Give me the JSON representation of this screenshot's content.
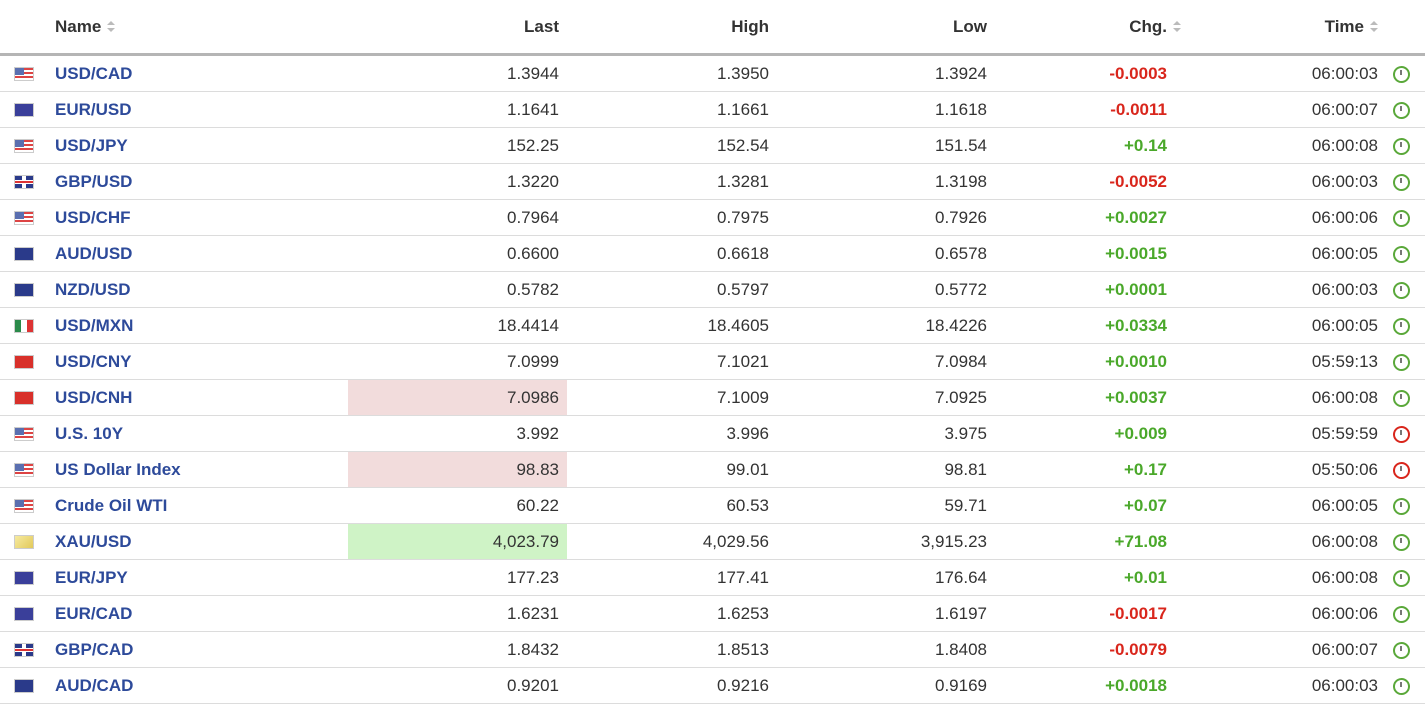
{
  "headers": {
    "name": "Name",
    "last": "Last",
    "high": "High",
    "low": "Low",
    "chg": "Chg.",
    "time": "Time"
  },
  "colors": {
    "positive": "#4aa82a",
    "negative": "#d9261c",
    "name_link": "#2d4a9a",
    "highlight_down": "#f2dcdc",
    "highlight_up": "#cff3c6"
  },
  "rows": [
    {
      "flag": "us",
      "name": "USD/CAD",
      "last": "1.3944",
      "high": "1.3950",
      "low": "1.3924",
      "chg": "-0.0003",
      "time": "06:00:03",
      "clock": "green",
      "hl": ""
    },
    {
      "flag": "eu",
      "name": "EUR/USD",
      "last": "1.1641",
      "high": "1.1661",
      "low": "1.1618",
      "chg": "-0.0011",
      "time": "06:00:07",
      "clock": "green",
      "hl": ""
    },
    {
      "flag": "us",
      "name": "USD/JPY",
      "last": "152.25",
      "high": "152.54",
      "low": "151.54",
      "chg": "+0.14",
      "time": "06:00:08",
      "clock": "green",
      "hl": ""
    },
    {
      "flag": "gb",
      "name": "GBP/USD",
      "last": "1.3220",
      "high": "1.3281",
      "low": "1.3198",
      "chg": "-0.0052",
      "time": "06:00:03",
      "clock": "green",
      "hl": ""
    },
    {
      "flag": "us",
      "name": "USD/CHF",
      "last": "0.7964",
      "high": "0.7975",
      "low": "0.7926",
      "chg": "+0.0027",
      "time": "06:00:06",
      "clock": "green",
      "hl": ""
    },
    {
      "flag": "au",
      "name": "AUD/USD",
      "last": "0.6600",
      "high": "0.6618",
      "low": "0.6578",
      "chg": "+0.0015",
      "time": "06:00:05",
      "clock": "green",
      "hl": ""
    },
    {
      "flag": "nz",
      "name": "NZD/USD",
      "last": "0.5782",
      "high": "0.5797",
      "low": "0.5772",
      "chg": "+0.0001",
      "time": "06:00:03",
      "clock": "green",
      "hl": ""
    },
    {
      "flag": "mx",
      "name": "USD/MXN",
      "last": "18.4414",
      "high": "18.4605",
      "low": "18.4226",
      "chg": "+0.0334",
      "time": "06:00:05",
      "clock": "green",
      "hl": ""
    },
    {
      "flag": "cn",
      "name": "USD/CNY",
      "last": "7.0999",
      "high": "7.1021",
      "low": "7.0984",
      "chg": "+0.0010",
      "time": "05:59:13",
      "clock": "green",
      "hl": ""
    },
    {
      "flag": "cn",
      "name": "USD/CNH",
      "last": "7.0986",
      "high": "7.1009",
      "low": "7.0925",
      "chg": "+0.0037",
      "time": "06:00:08",
      "clock": "green",
      "hl": "red"
    },
    {
      "flag": "us",
      "name": "U.S. 10Y",
      "last": "3.992",
      "high": "3.996",
      "low": "3.975",
      "chg": "+0.009",
      "time": "05:59:59",
      "clock": "red",
      "hl": ""
    },
    {
      "flag": "us",
      "name": "US Dollar Index",
      "last": "98.83",
      "high": "99.01",
      "low": "98.81",
      "chg": "+0.17",
      "time": "05:50:06",
      "clock": "red",
      "hl": "red"
    },
    {
      "flag": "us",
      "name": "Crude Oil WTI",
      "last": "60.22",
      "high": "60.53",
      "low": "59.71",
      "chg": "+0.07",
      "time": "06:00:05",
      "clock": "green",
      "hl": ""
    },
    {
      "flag": "xau",
      "name": "XAU/USD",
      "last": "4,023.79",
      "high": "4,029.56",
      "low": "3,915.23",
      "chg": "+71.08",
      "time": "06:00:08",
      "clock": "green",
      "hl": "green"
    },
    {
      "flag": "eu",
      "name": "EUR/JPY",
      "last": "177.23",
      "high": "177.41",
      "low": "176.64",
      "chg": "+0.01",
      "time": "06:00:08",
      "clock": "green",
      "hl": ""
    },
    {
      "flag": "eu",
      "name": "EUR/CAD",
      "last": "1.6231",
      "high": "1.6253",
      "low": "1.6197",
      "chg": "-0.0017",
      "time": "06:00:06",
      "clock": "green",
      "hl": ""
    },
    {
      "flag": "gb",
      "name": "GBP/CAD",
      "last": "1.8432",
      "high": "1.8513",
      "low": "1.8408",
      "chg": "-0.0079",
      "time": "06:00:07",
      "clock": "green",
      "hl": ""
    },
    {
      "flag": "au",
      "name": "AUD/CAD",
      "last": "0.9201",
      "high": "0.9216",
      "low": "0.9169",
      "chg": "+0.0018",
      "time": "06:00:03",
      "clock": "green",
      "hl": ""
    }
  ]
}
